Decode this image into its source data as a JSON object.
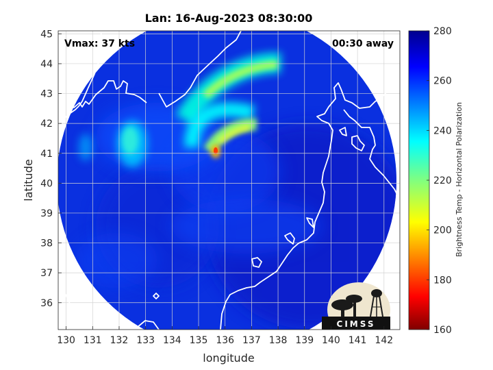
{
  "title": "Lan: 16-Aug-2023 08:30:00",
  "vmax_label": "Vmax: 37 kts",
  "time_offset_label": "00:30 away",
  "xlabel": "longitude",
  "ylabel": "latitude",
  "colorbar_label": "Brightness Temp - Horizontal Polarization",
  "logo_text": "CIMSS",
  "lon_ticks": [
    "130",
    "131",
    "132",
    "133",
    "134",
    "135",
    "136",
    "137",
    "138",
    "139",
    "140",
    "141",
    "142"
  ],
  "lat_ticks": [
    "36",
    "37",
    "38",
    "39",
    "40",
    "41",
    "42",
    "43",
    "44",
    "45"
  ],
  "colorbar_ticks": [
    "160",
    "180",
    "200",
    "220",
    "240",
    "260",
    "280"
  ],
  "chart_data": {
    "type": "heatmap",
    "title": "Lan: 16-Aug-2023 08:30:00",
    "xlabel": "longitude",
    "ylabel": "latitude",
    "xlim": [
      129.7,
      142.6
    ],
    "ylim": [
      35.1,
      45.1
    ],
    "clim": [
      160,
      280
    ],
    "colormap": "jet",
    "grid": true,
    "swath_center": {
      "lon": 135.9,
      "lat": 40.3
    },
    "swath_radius_deg": 5.55,
    "background_temp_K": 262,
    "ocean_temp_K": 255,
    "features": [
      {
        "name": "outer rainband",
        "lon": 137.0,
        "lat": 43.3,
        "min_temp_K": 218
      },
      {
        "name": "inner band",
        "lon": 136.5,
        "lat": 41.7,
        "min_temp_K": 213
      },
      {
        "name": "convective core",
        "lon": 135.6,
        "lat": 40.95,
        "min_temp_K": 185
      },
      {
        "name": "northwest cloud patch",
        "lon": 132.5,
        "lat": 41.3,
        "min_temp_K": 235
      }
    ]
  }
}
